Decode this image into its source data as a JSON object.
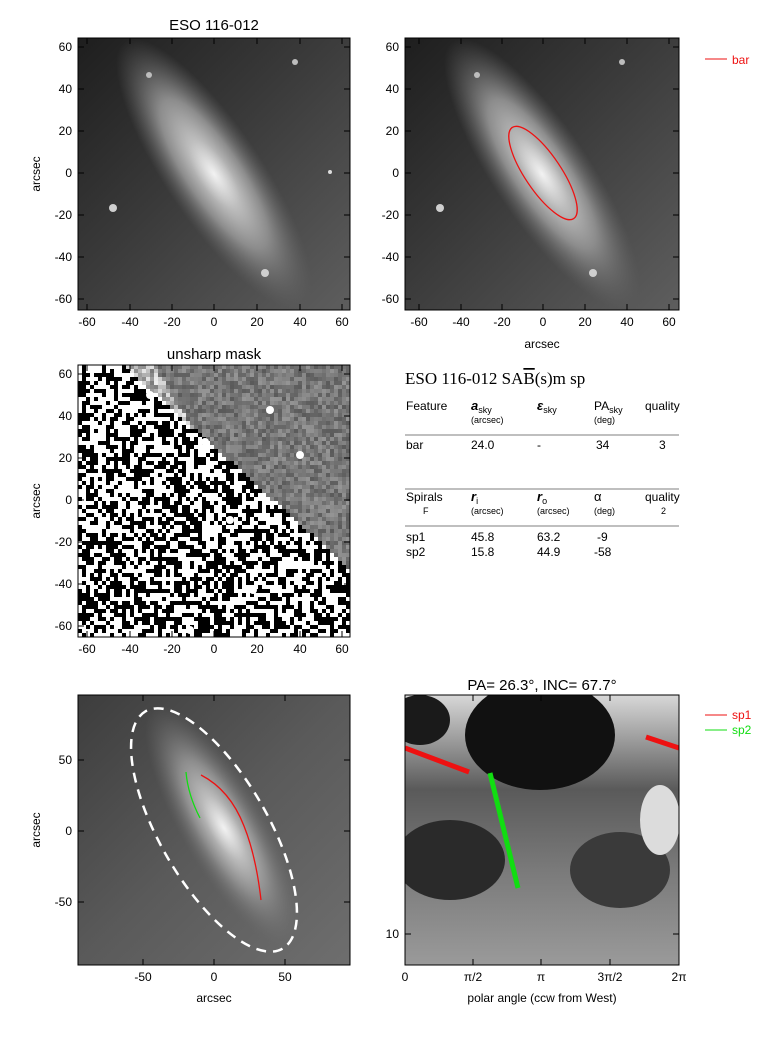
{
  "panels": {
    "top_left": {
      "title": "ESO 116-012",
      "ylabel": "arcsec",
      "xticks": [
        "-60",
        "-40",
        "-20",
        "0",
        "20",
        "40",
        "60"
      ],
      "yticks": [
        "60",
        "40",
        "20",
        "0",
        "-20",
        "-40",
        "-60"
      ]
    },
    "top_right": {
      "xlabel": "arcsec",
      "xticks": [
        "-60",
        "-40",
        "-20",
        "0",
        "20",
        "40",
        "60"
      ],
      "yticks": [
        "60",
        "40",
        "20",
        "0",
        "-20",
        "-40",
        "-60"
      ],
      "legend": "bar"
    },
    "mid_left": {
      "title": "unsharp mask",
      "ylabel": "arcsec",
      "xticks": [
        "-60",
        "-40",
        "-20",
        "0",
        "20",
        "40",
        "60"
      ],
      "yticks": [
        "60",
        "40",
        "20",
        "0",
        "-20",
        "-40",
        "-60"
      ]
    },
    "bot_left": {
      "xlabel": "arcsec",
      "ylabel": "arcsec",
      "xticks": [
        "-50",
        "0",
        "50"
      ],
      "yticks": [
        "50",
        "0",
        "-50"
      ]
    },
    "bot_right": {
      "title": "PA=  26.3°, INC=  67.7°",
      "xlabel": "polar angle (ccw from West)",
      "xticks": [
        "0",
        "π/2",
        "π",
        "3π/2",
        "2π"
      ],
      "yticks": [
        "10"
      ],
      "legend": [
        "sp1",
        "sp2"
      ]
    }
  },
  "table": {
    "heading_pre": "ESO 116-012  SA",
    "heading_bar": "B",
    "heading_post": "(s)m sp",
    "bar_header": {
      "c1": "Feature",
      "c2": "a",
      "c2_sub": "sky",
      "c2_unit": "(arcsec)",
      "c3": "ε",
      "c3_sub": "sky",
      "c4": "PA",
      "c4_sub": "sky",
      "c4_unit": "(deg)",
      "c5": "quality"
    },
    "bar_row": {
      "c1": "bar",
      "c2": "24.0",
      "c3": "-",
      "c4": "34",
      "c5": "3"
    },
    "spiral_header": {
      "c1": "Spirals",
      "c1b": "F",
      "c2": "r",
      "c2_sub": "i",
      "c2_unit": "(arcsec)",
      "c3": "r",
      "c3_sub": "o",
      "c3_unit": "(arcsec)",
      "c4": "α",
      "c4_unit": "(deg)",
      "c5": "quality",
      "c5b": "2"
    },
    "spiral_rows": [
      {
        "c1": "sp1",
        "c2": "45.8",
        "c3": "63.2",
        "c4": "-9"
      },
      {
        "c1": "sp2",
        "c2": "15.8",
        "c3": "44.9",
        "c4": "-58"
      }
    ]
  },
  "colors": {
    "bar": "#ee1111",
    "sp1": "#ee1111",
    "sp2": "#11dd11",
    "ellipse": "#ffffff"
  }
}
